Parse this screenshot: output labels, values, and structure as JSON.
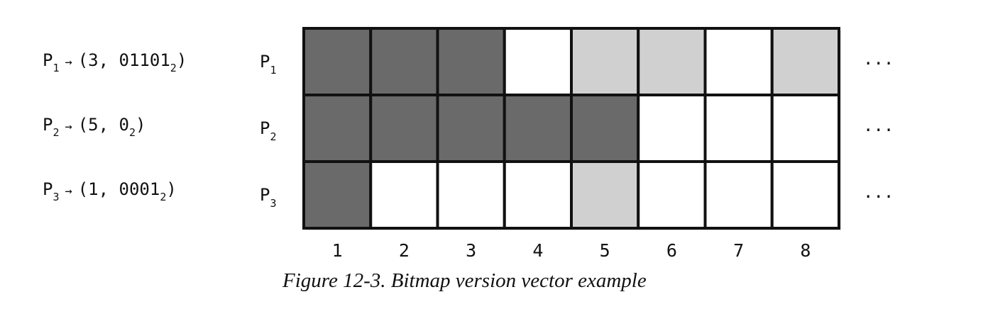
{
  "legend": [
    {
      "process": "P",
      "sub": "1",
      "arrow": "→",
      "open": "(",
      "max": "3",
      "sep": ", ",
      "bits": "01101",
      "base": "2",
      "close": ")"
    },
    {
      "process": "P",
      "sub": "2",
      "arrow": "→",
      "open": "(",
      "max": "5",
      "sep": ", ",
      "bits": "0",
      "base": "2",
      "close": ")"
    },
    {
      "process": "P",
      "sub": "3",
      "arrow": "→",
      "open": "(",
      "max": "1",
      "sep": ", ",
      "bits": "0001",
      "base": "2",
      "close": ")"
    }
  ],
  "grid": {
    "rows": [
      {
        "label": "P",
        "sub": "1",
        "cells": [
          "dark",
          "dark",
          "dark",
          "white",
          "light",
          "light",
          "white",
          "light"
        ]
      },
      {
        "label": "P",
        "sub": "2",
        "cells": [
          "dark",
          "dark",
          "dark",
          "dark",
          "dark",
          "white",
          "white",
          "white"
        ]
      },
      {
        "label": "P",
        "sub": "3",
        "cells": [
          "dark",
          "white",
          "white",
          "white",
          "light",
          "white",
          "white",
          "white"
        ]
      }
    ],
    "columns": [
      "1",
      "2",
      "3",
      "4",
      "5",
      "6",
      "7",
      "8"
    ],
    "ellipsis": "...",
    "colors": {
      "dark": "#6a6a6a",
      "light": "#d0d0d0",
      "white": "#ffffff",
      "border": "#111111"
    }
  },
  "caption": "Figure 12-3. Bitmap version vector example"
}
